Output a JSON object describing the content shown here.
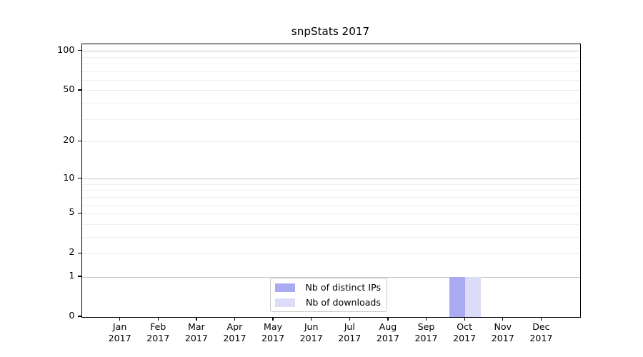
{
  "chart_data": {
    "type": "bar",
    "title": "snpStats 2017",
    "categories": [
      "Jan 2017",
      "Feb 2017",
      "Mar 2017",
      "Apr 2017",
      "May 2017",
      "Jun 2017",
      "Jul 2017",
      "Aug 2017",
      "Sep 2017",
      "Oct 2017",
      "Nov 2017",
      "Dec 2017"
    ],
    "series": [
      {
        "name": "Nb of distinct IPs",
        "color": "#a9a9f4",
        "values": [
          0,
          0,
          0,
          0,
          0,
          0,
          0,
          0,
          0,
          1,
          0,
          0
        ]
      },
      {
        "name": "Nb of downloads",
        "color": "#dcdcf9",
        "values": [
          0,
          0,
          0,
          0,
          0,
          0,
          0,
          0,
          0,
          1,
          0,
          0
        ]
      }
    ],
    "y_axis": {
      "scale": "log1p",
      "ticks": [
        0,
        1,
        2,
        5,
        10,
        20,
        50,
        100
      ],
      "minor_ticks": [
        3,
        4,
        6,
        7,
        8,
        9,
        30,
        40,
        60,
        70,
        80,
        90
      ],
      "decade_lines": [
        1,
        10,
        100
      ],
      "max": 112
    },
    "x_axis": {
      "tick_count": 12
    },
    "legend": {
      "position": "bottom-center"
    },
    "grid": true,
    "background": "#ffffff"
  }
}
